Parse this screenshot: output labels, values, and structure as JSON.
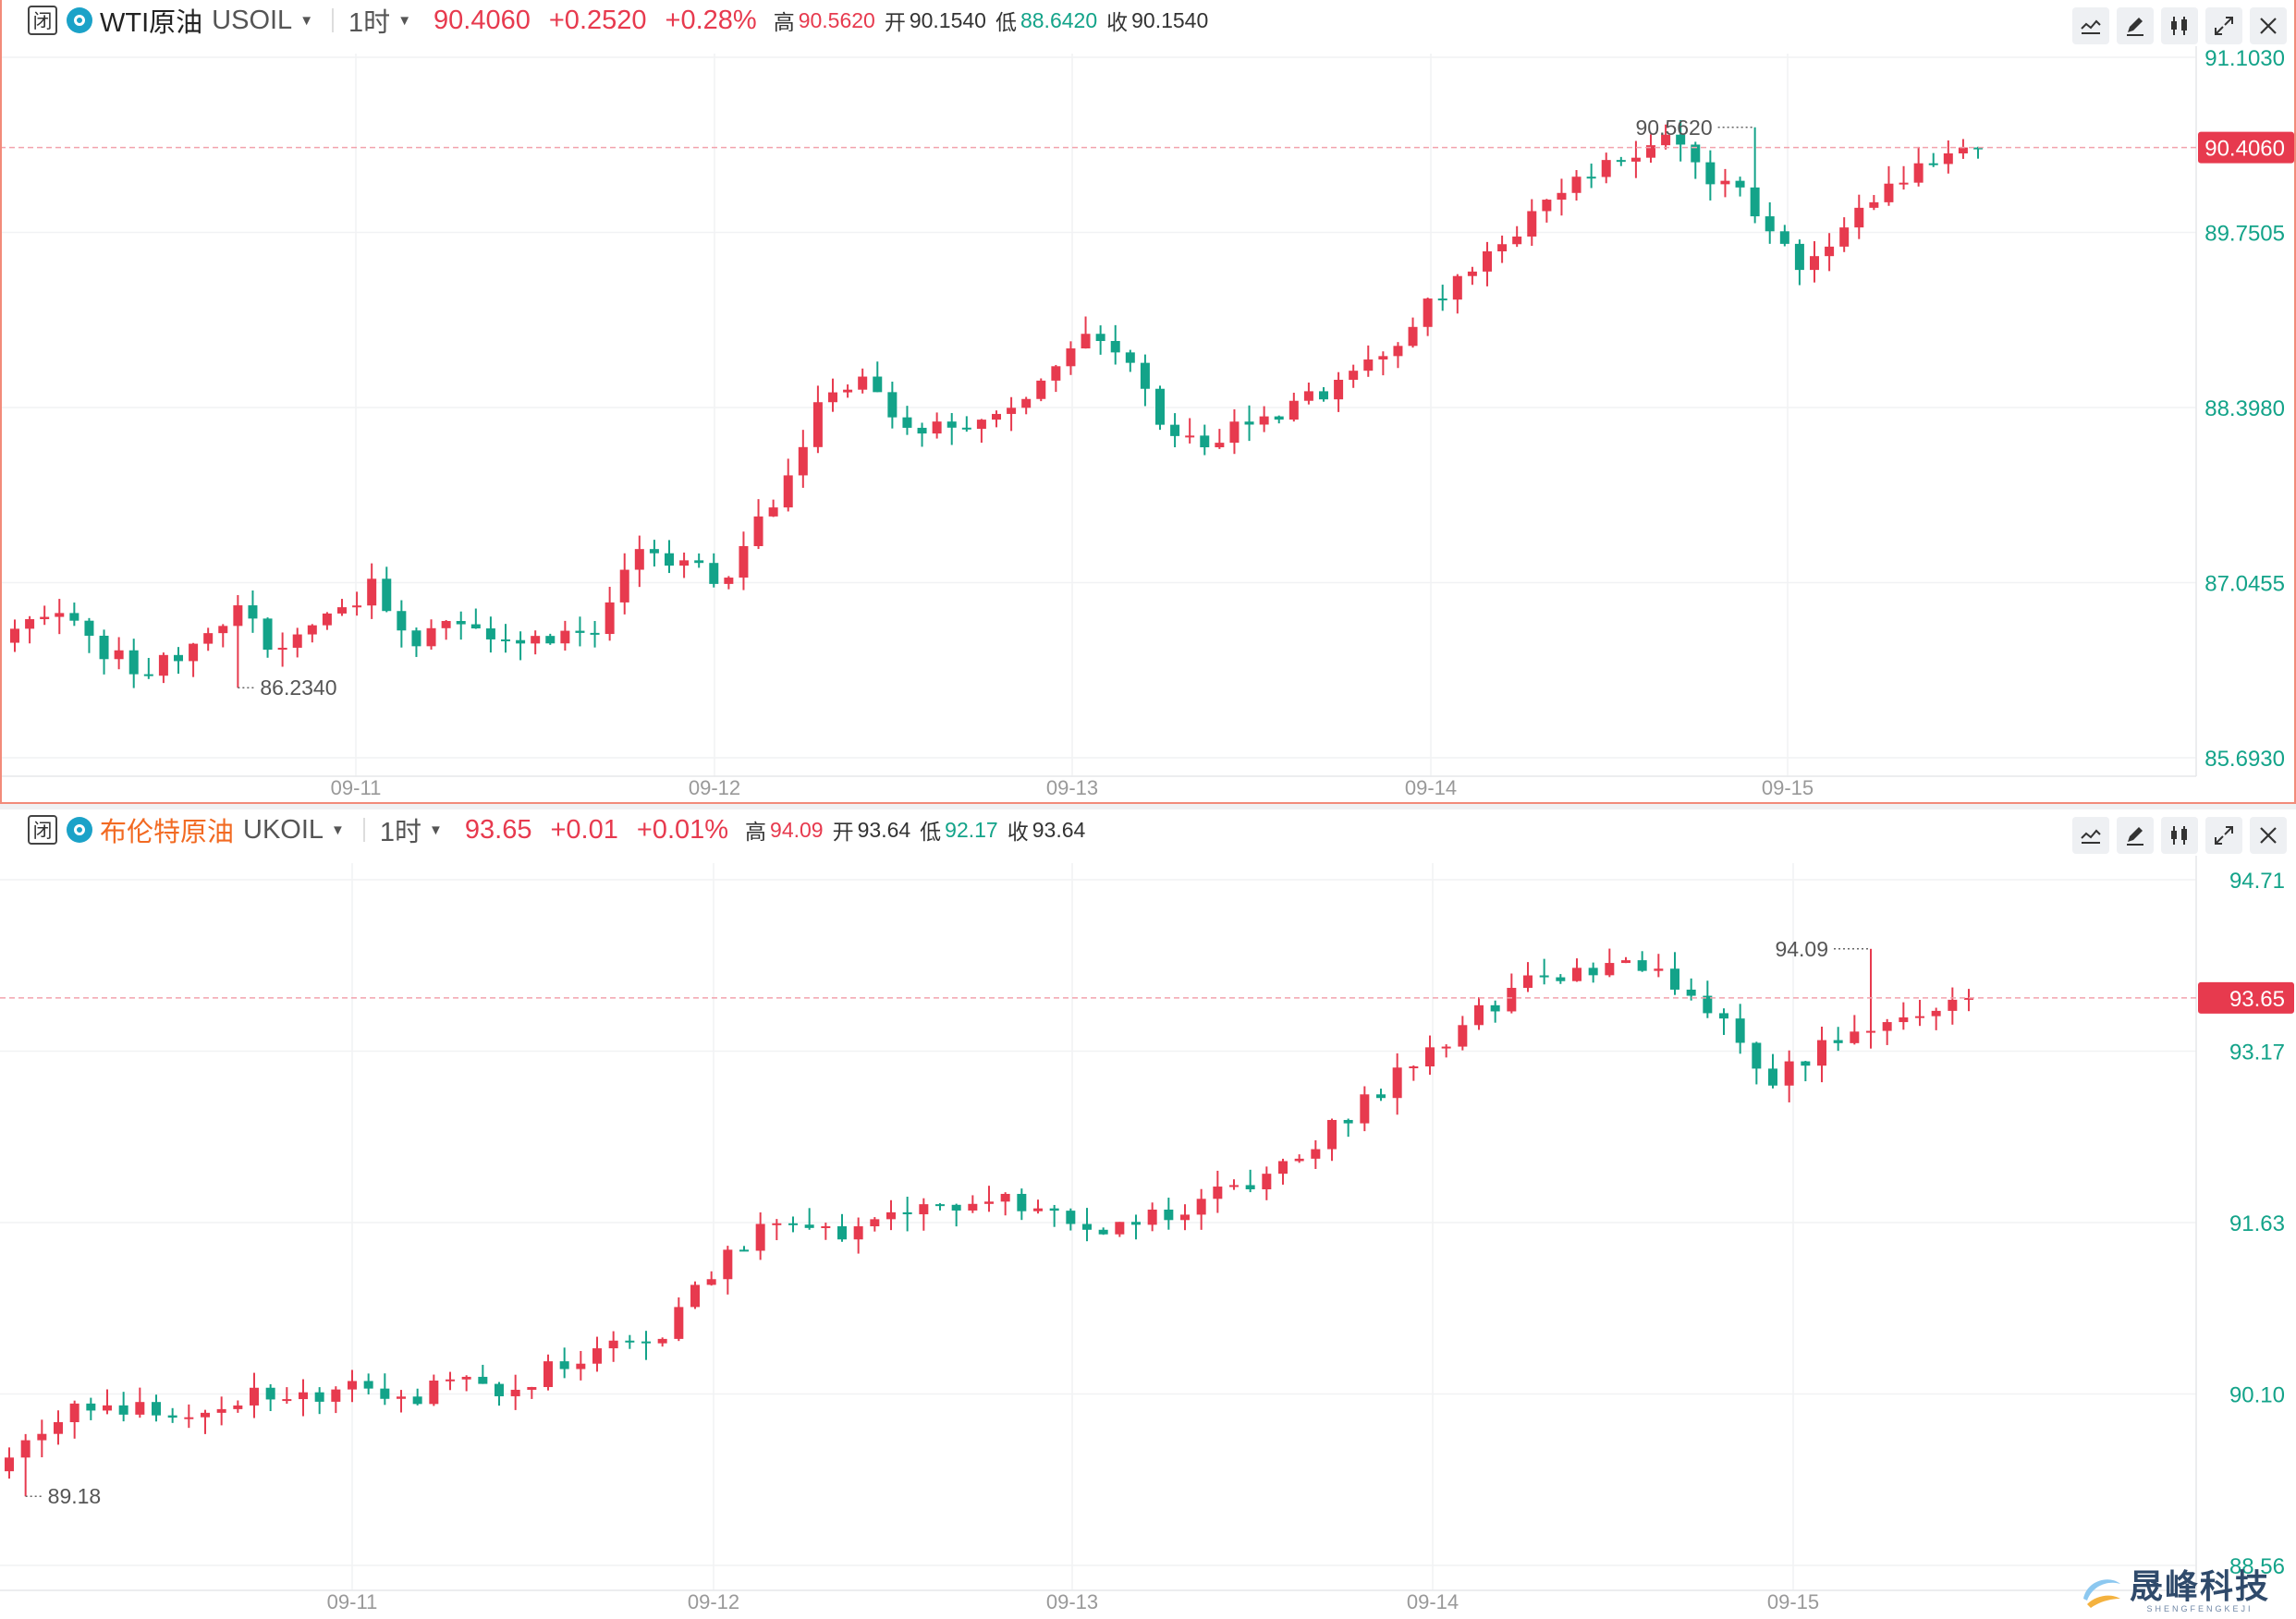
{
  "panels": [
    {
      "market_status": "闭",
      "name": "WTI原油",
      "symbol": "USOIL",
      "timeframe": "1时",
      "price": "90.4060",
      "change": "+0.2520",
      "change_pct": "+0.28%",
      "high_label": "高",
      "high": "90.5620",
      "open_label": "开",
      "open": "90.1540",
      "low_label": "低",
      "low": "88.6420",
      "close_label": "收",
      "close": "90.1540",
      "price_axis": [
        "91.1030",
        "89.7505",
        "88.3980",
        "87.0455",
        "85.6930"
      ],
      "axis_min": 85.693,
      "axis_max": 91.103,
      "current_tag": "90.4060",
      "current_value": 90.406,
      "max_marker": "90.5620",
      "min_marker": "86.2340",
      "dates": [
        "09-11",
        "09-12",
        "09-13",
        "09-14",
        "09-15"
      ],
      "anchors": [
        86.7,
        86.85,
        86.5,
        86.35,
        86.6,
        86.8,
        86.5,
        86.75,
        87.0,
        86.6,
        86.75,
        86.55,
        86.65,
        86.7,
        87.3,
        87.2,
        87.05,
        87.7,
        88.4,
        88.6,
        88.3,
        88.2,
        88.4,
        88.6,
        88.9,
        88.7,
        88.1,
        88.2,
        88.35,
        88.45,
        88.7,
        88.9,
        89.3,
        89.55,
        89.85,
        90.1,
        90.3,
        90.45,
        90.2,
        89.95,
        89.5,
        89.75,
        90.15,
        90.3,
        90.406
      ],
      "pin_low_index": 5,
      "pin_high_index": 39,
      "color_seed": 3
    },
    {
      "market_status": "闭",
      "name": "布伦特原油",
      "symbol": "UKOIL",
      "timeframe": "1时",
      "price": "93.65",
      "change": "+0.01",
      "change_pct": "+0.01%",
      "high_label": "高",
      "high": "94.09",
      "open_label": "开",
      "open": "93.64",
      "low_label": "低",
      "low": "92.17",
      "close_label": "收",
      "close": "93.64",
      "price_axis": [
        "94.71",
        "93.17",
        "91.63",
        "90.10",
        "88.56"
      ],
      "axis_min": 88.56,
      "axis_max": 94.71,
      "current_tag": "93.65",
      "current_value": 93.65,
      "max_marker": "94.09",
      "min_marker": "89.18",
      "dates": [
        "09-11",
        "09-12",
        "09-13",
        "09-14",
        "09-15"
      ],
      "anchors": [
        89.45,
        89.9,
        90.05,
        89.9,
        89.95,
        90.1,
        90.05,
        90.25,
        90.0,
        90.2,
        90.1,
        90.3,
        90.5,
        90.5,
        91.0,
        91.45,
        91.7,
        91.55,
        91.7,
        91.8,
        91.9,
        91.75,
        91.55,
        91.65,
        91.75,
        91.95,
        92.1,
        92.5,
        92.8,
        93.2,
        93.5,
        93.8,
        93.9,
        94.0,
        93.75,
        93.5,
        92.9,
        93.2,
        93.4,
        93.55,
        93.65
      ],
      "pin_low_index": 0,
      "pin_high_index": 38,
      "color_seed": 7
    }
  ],
  "colors": {
    "up": "#e73a4e",
    "down": "#13a389",
    "grid": "#f1f2f4",
    "axis_text": "#13a389",
    "date_text": "#999999",
    "current_line": "#f2a2ad"
  },
  "icons": [
    "indicator-icon",
    "draw-pencil-icon",
    "chart-type-icon",
    "fullscreen-icon",
    "close-icon"
  ],
  "watermark": {
    "cn": "晟峰科技",
    "en": "SHENGFENGKEJI"
  }
}
